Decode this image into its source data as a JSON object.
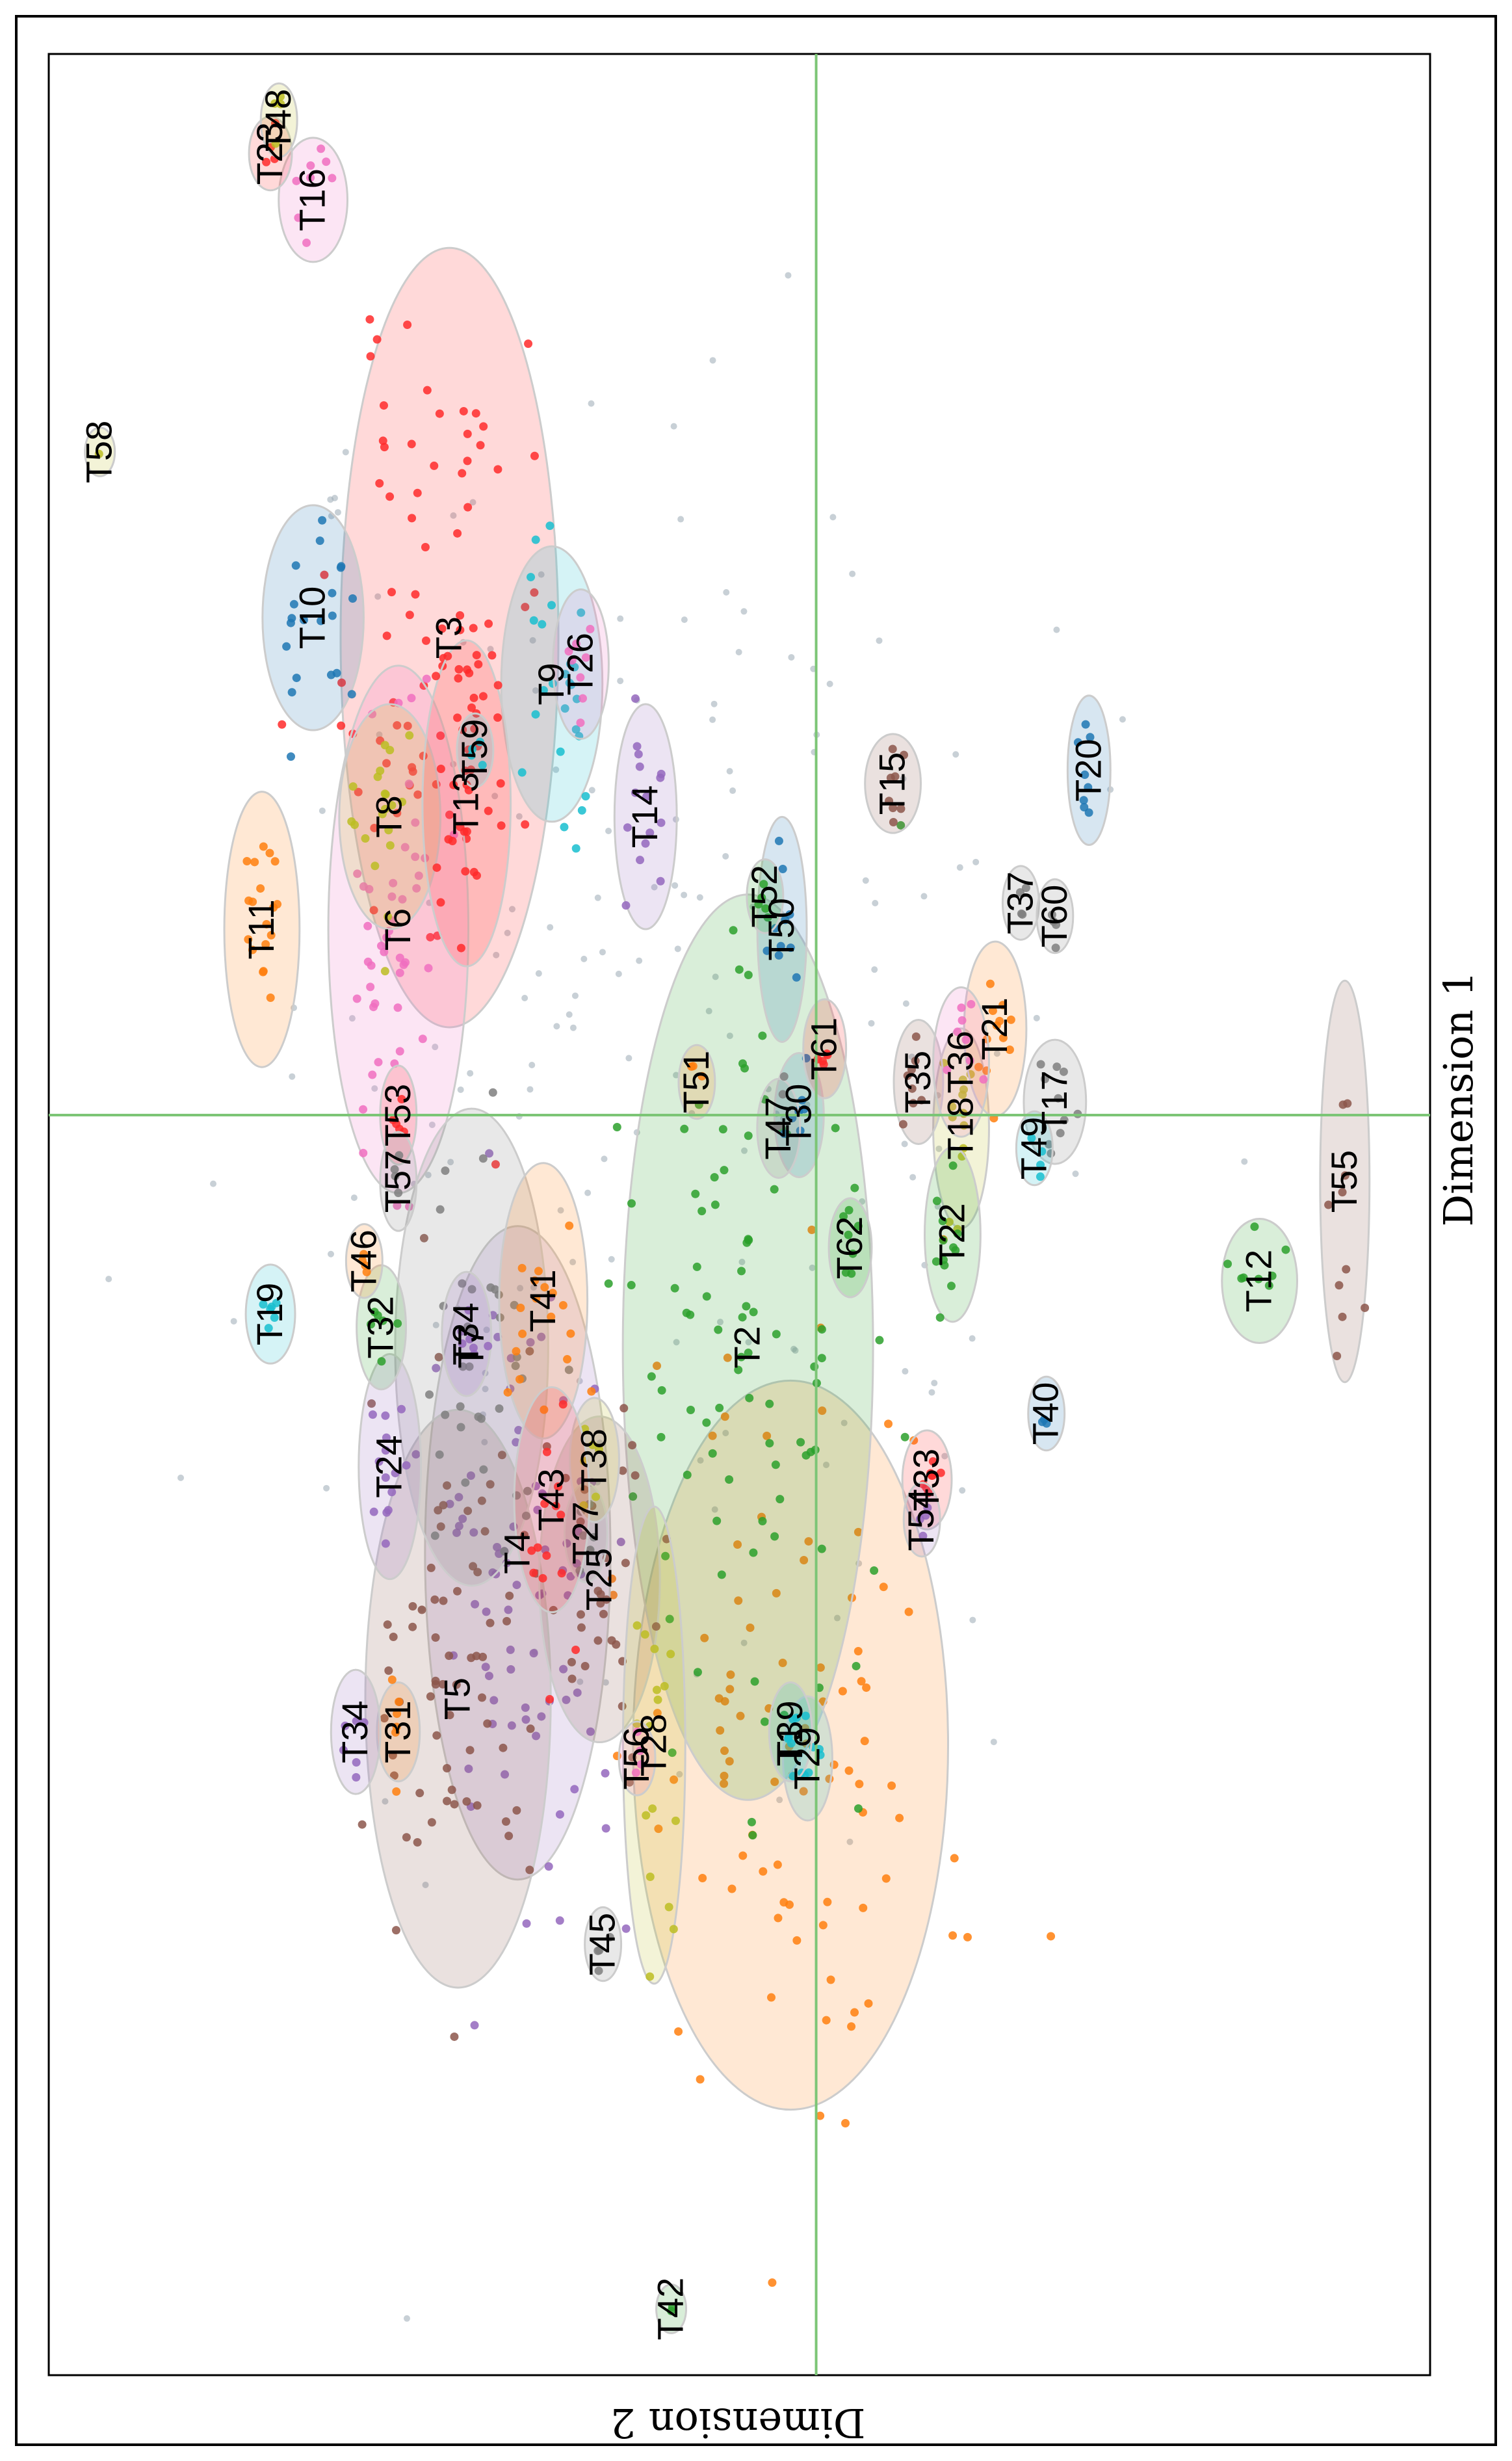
{
  "chart_data": {
    "type": "scatter",
    "orientation_note_hidden": "",
    "xlabel": "Dimension 1",
    "ylabel": "Dimension 2",
    "grid": false,
    "legend": "none",
    "colors": {
      "axis_line": "#7cc576",
      "frame": "#000000",
      "noise": "#9aaab5"
    },
    "clusters": [
      {
        "label": "T1",
        "x": -0.95,
        "y": 0.15,
        "spread": [
          0.28,
          0.45
        ],
        "n": 90,
        "color": "#ff7f0e"
      },
      {
        "label": "T2",
        "x": -0.35,
        "y": 0.4,
        "spread": [
          0.35,
          0.35
        ],
        "n": 90,
        "color": "#2ca02c"
      },
      {
        "label": "T3",
        "x": 0.72,
        "y": 2.15,
        "spread": [
          0.3,
          0.3
        ],
        "n": 80,
        "color": "#ff2a2a"
      },
      {
        "label": "T4",
        "x": -0.66,
        "y": 1.75,
        "spread": [
          0.25,
          0.25
        ],
        "n": 80,
        "color": "#9467bd"
      },
      {
        "label": "T5",
        "x": -0.88,
        "y": 2.1,
        "spread": [
          0.22,
          0.25
        ],
        "n": 70,
        "color": "#8c564b"
      },
      {
        "label": "T6",
        "x": 0.28,
        "y": 2.45,
        "spread": [
          0.2,
          0.18
        ],
        "n": 45,
        "color": "#f06fc0"
      },
      {
        "label": "T7",
        "x": -0.35,
        "y": 2.02,
        "spread": [
          0.18,
          0.2
        ],
        "n": 35,
        "color": "#7f7f7f"
      },
      {
        "label": "T8",
        "x": 0.45,
        "y": 2.5,
        "spread": [
          0.08,
          0.12
        ],
        "n": 20,
        "color": "#bcbd22"
      },
      {
        "label": "T9",
        "x": 0.65,
        "y": 1.55,
        "spread": [
          0.1,
          0.12
        ],
        "n": 25,
        "color": "#17becf"
      },
      {
        "label": "T10",
        "x": 0.75,
        "y": 2.95,
        "spread": [
          0.08,
          0.12
        ],
        "n": 20,
        "color": "#1f77b4"
      },
      {
        "label": "T11",
        "x": 0.28,
        "y": 3.25,
        "spread": [
          0.1,
          0.08
        ],
        "n": 18,
        "color": "#ff7f0e"
      },
      {
        "label": "T12",
        "x": -0.25,
        "y": -2.6,
        "spread": [
          0.04,
          0.08
        ],
        "n": 8,
        "color": "#2ca02c"
      },
      {
        "label": "T13",
        "x": 0.47,
        "y": 2.05,
        "spread": [
          0.12,
          0.1
        ],
        "n": 30,
        "color": "#ff2a2a"
      },
      {
        "label": "T14",
        "x": 0.45,
        "y": 1.0,
        "spread": [
          0.08,
          0.06
        ],
        "n": 15,
        "color": "#9467bd"
      },
      {
        "label": "T15",
        "x": 0.5,
        "y": -0.45,
        "spread": [
          0.03,
          0.05
        ],
        "n": 8,
        "color": "#8c564b"
      },
      {
        "label": "T16",
        "x": 1.38,
        "y": 2.95,
        "spread": [
          0.04,
          0.07
        ],
        "n": 8,
        "color": "#f06fc0"
      },
      {
        "label": "T17",
        "x": 0.02,
        "y": -1.4,
        "spread": [
          0.04,
          0.06
        ],
        "n": 10,
        "color": "#7f7f7f"
      },
      {
        "label": "T18",
        "x": -0.02,
        "y": -0.85,
        "spread": [
          0.07,
          0.05
        ],
        "n": 14,
        "color": "#bcbd22"
      },
      {
        "label": "T19",
        "x": -0.3,
        "y": 3.2,
        "spread": [
          0.03,
          0.04
        ],
        "n": 6,
        "color": "#17becf"
      },
      {
        "label": "T20",
        "x": 0.52,
        "y": -1.6,
        "spread": [
          0.05,
          0.03
        ],
        "n": 8,
        "color": "#1f77b4"
      },
      {
        "label": "T21",
        "x": 0.13,
        "y": -1.05,
        "spread": [
          0.06,
          0.06
        ],
        "n": 12,
        "color": "#ff7f0e"
      },
      {
        "label": "T22",
        "x": -0.18,
        "y": -0.8,
        "spread": [
          0.06,
          0.05
        ],
        "n": 12,
        "color": "#2ca02c"
      },
      {
        "label": "T23",
        "x": 1.45,
        "y": 3.2,
        "spread": [
          0.02,
          0.03
        ],
        "n": 4,
        "color": "#ff2a2a"
      },
      {
        "label": "T24",
        "x": -0.53,
        "y": 2.5,
        "spread": [
          0.08,
          0.06
        ],
        "n": 14,
        "color": "#9467bd"
      },
      {
        "label": "T25",
        "x": -0.7,
        "y": 1.27,
        "spread": [
          0.12,
          0.15
        ],
        "n": 30,
        "color": "#8c564b"
      },
      {
        "label": "T26",
        "x": 0.68,
        "y": 1.38,
        "spread": [
          0.05,
          0.05
        ],
        "n": 8,
        "color": "#f06fc0"
      },
      {
        "label": "T27",
        "x": -0.63,
        "y": 1.35,
        "spread": [
          0.03,
          0.03
        ],
        "n": 6,
        "color": "#7f7f7f"
      },
      {
        "label": "T28",
        "x": -0.95,
        "y": 0.95,
        "spread": [
          0.18,
          0.06
        ],
        "n": 16,
        "color": "#bcbd22"
      },
      {
        "label": "T29",
        "x": -0.97,
        "y": 0.05,
        "spread": [
          0.04,
          0.04
        ],
        "n": 8,
        "color": "#17becf"
      },
      {
        "label": "T30",
        "x": 0.0,
        "y": 0.1,
        "spread": [
          0.04,
          0.04
        ],
        "n": 8,
        "color": "#1f77b4"
      },
      {
        "label": "T31",
        "x": -0.93,
        "y": 2.45,
        "spread": [
          0.03,
          0.03
        ],
        "n": 6,
        "color": "#ff7f0e"
      },
      {
        "label": "T32",
        "x": -0.32,
        "y": 2.55,
        "spread": [
          0.04,
          0.04
        ],
        "n": 6,
        "color": "#2ca02c"
      },
      {
        "label": "T33",
        "x": -0.55,
        "y": -0.65,
        "spread": [
          0.03,
          0.04
        ],
        "n": 8,
        "color": "#ff2a2a"
      },
      {
        "label": "T34",
        "x": -0.33,
        "y": 2.05,
        "spread": [
          0.04,
          0.04
        ],
        "n": 6,
        "color": "#9467bd"
      },
      {
        "label": "T34",
        "x": -0.93,
        "y": 2.7,
        "spread": [
          0.04,
          0.04
        ],
        "n": 6,
        "color": "#9467bd"
      },
      {
        "label": "T35",
        "x": 0.05,
        "y": -0.6,
        "spread": [
          0.04,
          0.04
        ],
        "n": 8,
        "color": "#8c564b"
      },
      {
        "label": "T36",
        "x": 0.08,
        "y": -0.85,
        "spread": [
          0.05,
          0.05
        ],
        "n": 8,
        "color": "#f06fc0"
      },
      {
        "label": "T37",
        "x": 0.32,
        "y": -1.2,
        "spread": [
          0.02,
          0.02
        ],
        "n": 4,
        "color": "#7f7f7f"
      },
      {
        "label": "T38",
        "x": -0.52,
        "y": 1.3,
        "spread": [
          0.04,
          0.04
        ],
        "n": 6,
        "color": "#bcbd22"
      },
      {
        "label": "T39",
        "x": -0.93,
        "y": 0.15,
        "spread": [
          0.03,
          0.03
        ],
        "n": 5,
        "color": "#17becf"
      },
      {
        "label": "T40",
        "x": -0.45,
        "y": -1.35,
        "spread": [
          0.02,
          0.02
        ],
        "n": 3,
        "color": "#1f77b4"
      },
      {
        "label": "T41",
        "x": -0.28,
        "y": 1.6,
        "spread": [
          0.1,
          0.1
        ],
        "n": 18,
        "color": "#ff7f0e"
      },
      {
        "label": "T42",
        "x": -1.8,
        "y": 0.85,
        "spread": [
          0.01,
          0.01
        ],
        "n": 2,
        "color": "#2ca02c"
      },
      {
        "label": "T43",
        "x": -0.58,
        "y": 1.55,
        "spread": [
          0.08,
          0.08
        ],
        "n": 14,
        "color": "#ff2a2a"
      },
      {
        "label": "T45",
        "x": -1.25,
        "y": 1.25,
        "spread": [
          0.02,
          0.02
        ],
        "n": 4,
        "color": "#7f7f7f"
      },
      {
        "label": "T46",
        "x": -0.22,
        "y": 2.65,
        "spread": [
          0.02,
          0.02
        ],
        "n": 4,
        "color": "#ff7f0e"
      },
      {
        "label": "T47",
        "x": -0.02,
        "y": 0.22,
        "spread": [
          0.03,
          0.03
        ],
        "n": 5,
        "color": "#7f7f7f"
      },
      {
        "label": "T48",
        "x": 1.5,
        "y": 3.15,
        "spread": [
          0.02,
          0.02
        ],
        "n": 4,
        "color": "#bcbd22"
      },
      {
        "label": "T49",
        "x": -0.05,
        "y": -1.28,
        "spread": [
          0.02,
          0.02
        ],
        "n": 4,
        "color": "#17becf"
      },
      {
        "label": "T50",
        "x": 0.28,
        "y": 0.2,
        "spread": [
          0.08,
          0.04
        ],
        "n": 10,
        "color": "#1f77b4"
      },
      {
        "label": "T51",
        "x": 0.05,
        "y": 0.7,
        "spread": [
          0.02,
          0.02
        ],
        "n": 3,
        "color": "#ff7f0e"
      },
      {
        "label": "T52",
        "x": 0.33,
        "y": 0.3,
        "spread": [
          0.02,
          0.02
        ],
        "n": 4,
        "color": "#2ca02c"
      },
      {
        "label": "T53",
        "x": 0.0,
        "y": 2.45,
        "spread": [
          0.03,
          0.02
        ],
        "n": 5,
        "color": "#ff2a2a"
      },
      {
        "label": "T54",
        "x": -0.61,
        "y": -0.62,
        "spread": [
          0.02,
          0.02
        ],
        "n": 4,
        "color": "#9467bd"
      },
      {
        "label": "T55",
        "x": -0.1,
        "y": -3.1,
        "spread": [
          0.15,
          0.04
        ],
        "n": 10,
        "color": "#8c564b"
      },
      {
        "label": "T56",
        "x": -0.97,
        "y": 1.05,
        "spread": [
          0.02,
          0.02
        ],
        "n": 4,
        "color": "#f06fc0"
      },
      {
        "label": "T57",
        "x": -0.1,
        "y": 2.45,
        "spread": [
          0.03,
          0.02
        ],
        "n": 4,
        "color": "#7f7f7f"
      },
      {
        "label": "T58",
        "x": 1.0,
        "y": 4.2,
        "spread": [
          0.01,
          0.01
        ],
        "n": 1,
        "color": "#bcbd22"
      },
      {
        "label": "T59",
        "x": 0.55,
        "y": 2.0,
        "spread": [
          0.02,
          0.02
        ],
        "n": 4,
        "color": "#17becf"
      },
      {
        "label": "T60",
        "x": 0.3,
        "y": -1.4,
        "spread": [
          0.02,
          0.02
        ],
        "n": 4,
        "color": "#7f7f7f"
      },
      {
        "label": "T61",
        "x": 0.1,
        "y": -0.05,
        "spread": [
          0.03,
          0.03
        ],
        "n": 5,
        "color": "#ff2a2a"
      },
      {
        "label": "T62",
        "x": -0.2,
        "y": -0.2,
        "spread": [
          0.03,
          0.03
        ],
        "n": 5,
        "color": "#2ca02c"
      }
    ],
    "xlim": [
      -1.9,
      1.6
    ],
    "ylim": [
      -3.6,
      4.5
    ]
  }
}
